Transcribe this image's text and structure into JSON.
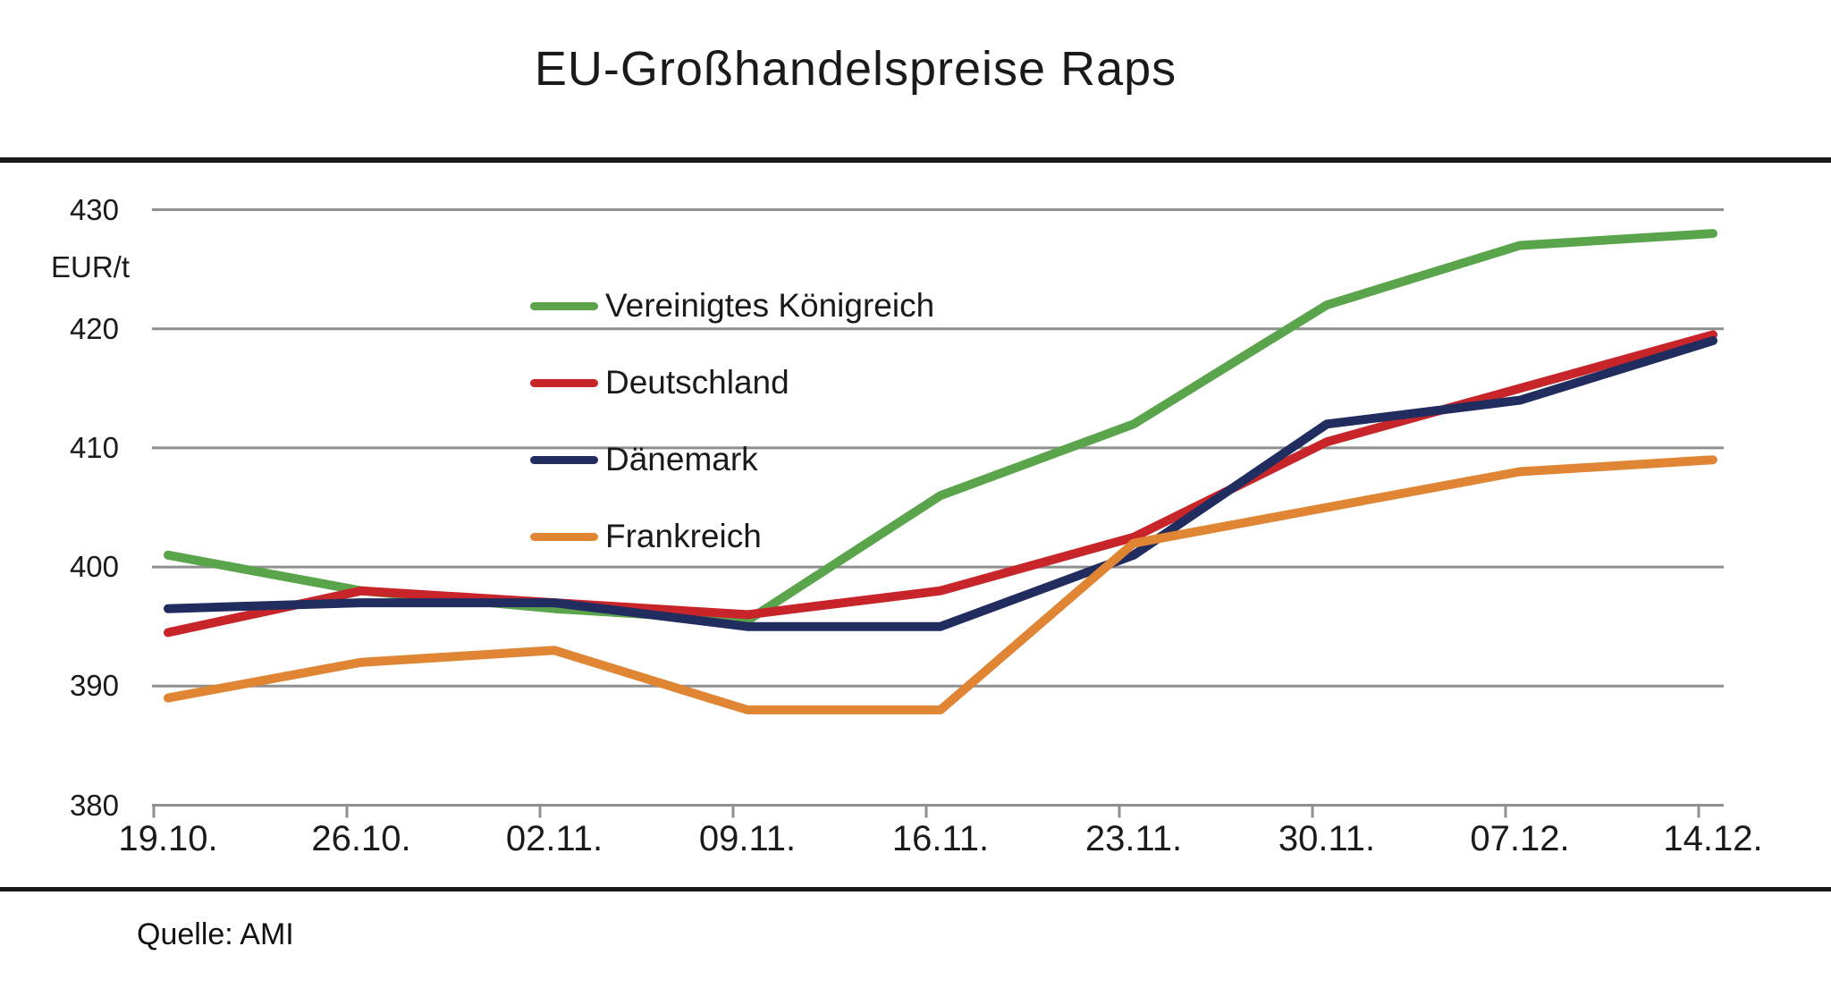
{
  "title": "EU-Großhandelspreise Raps",
  "source": "Quelle: AMI",
  "colors": {
    "gridline": "#8f8f8f",
    "axis": "#8f8f8f",
    "rule": "#1a1a1a",
    "text": "#1a1a1a"
  },
  "chart_data": {
    "type": "line",
    "title": "EU-Großhandelspreise Raps",
    "ylabel": "EUR/t",
    "ylim": [
      380,
      430
    ],
    "y_ticks": [
      430,
      420,
      410,
      400,
      390,
      380
    ],
    "grid": true,
    "legend_position": "upper-left-inside",
    "categories": [
      "19.10.",
      "26.10.",
      "02.11.",
      "09.11.",
      "16.11.",
      "23.11.",
      "30.11.",
      "07.12.",
      "14.12."
    ],
    "series": [
      {
        "name": "Vereinigtes Königreich",
        "color": "#5aa54b",
        "values": [
          401,
          398,
          396.5,
          395.5,
          406,
          412,
          422,
          427,
          428
        ]
      },
      {
        "name": "Deutschland",
        "color": "#c8252a",
        "values": [
          394.5,
          398,
          397,
          396,
          398,
          402.5,
          410.5,
          415,
          419.5
        ]
      },
      {
        "name": "Dänemark",
        "color": "#212c5f",
        "values": [
          396.5,
          397,
          397,
          395,
          395,
          401,
          412,
          414,
          419
        ]
      },
      {
        "name": "Frankreich",
        "color": "#e08534",
        "values": [
          389,
          392,
          393,
          388,
          388,
          402,
          405,
          408,
          409
        ]
      }
    ],
    "source": "Quelle: AMI"
  }
}
